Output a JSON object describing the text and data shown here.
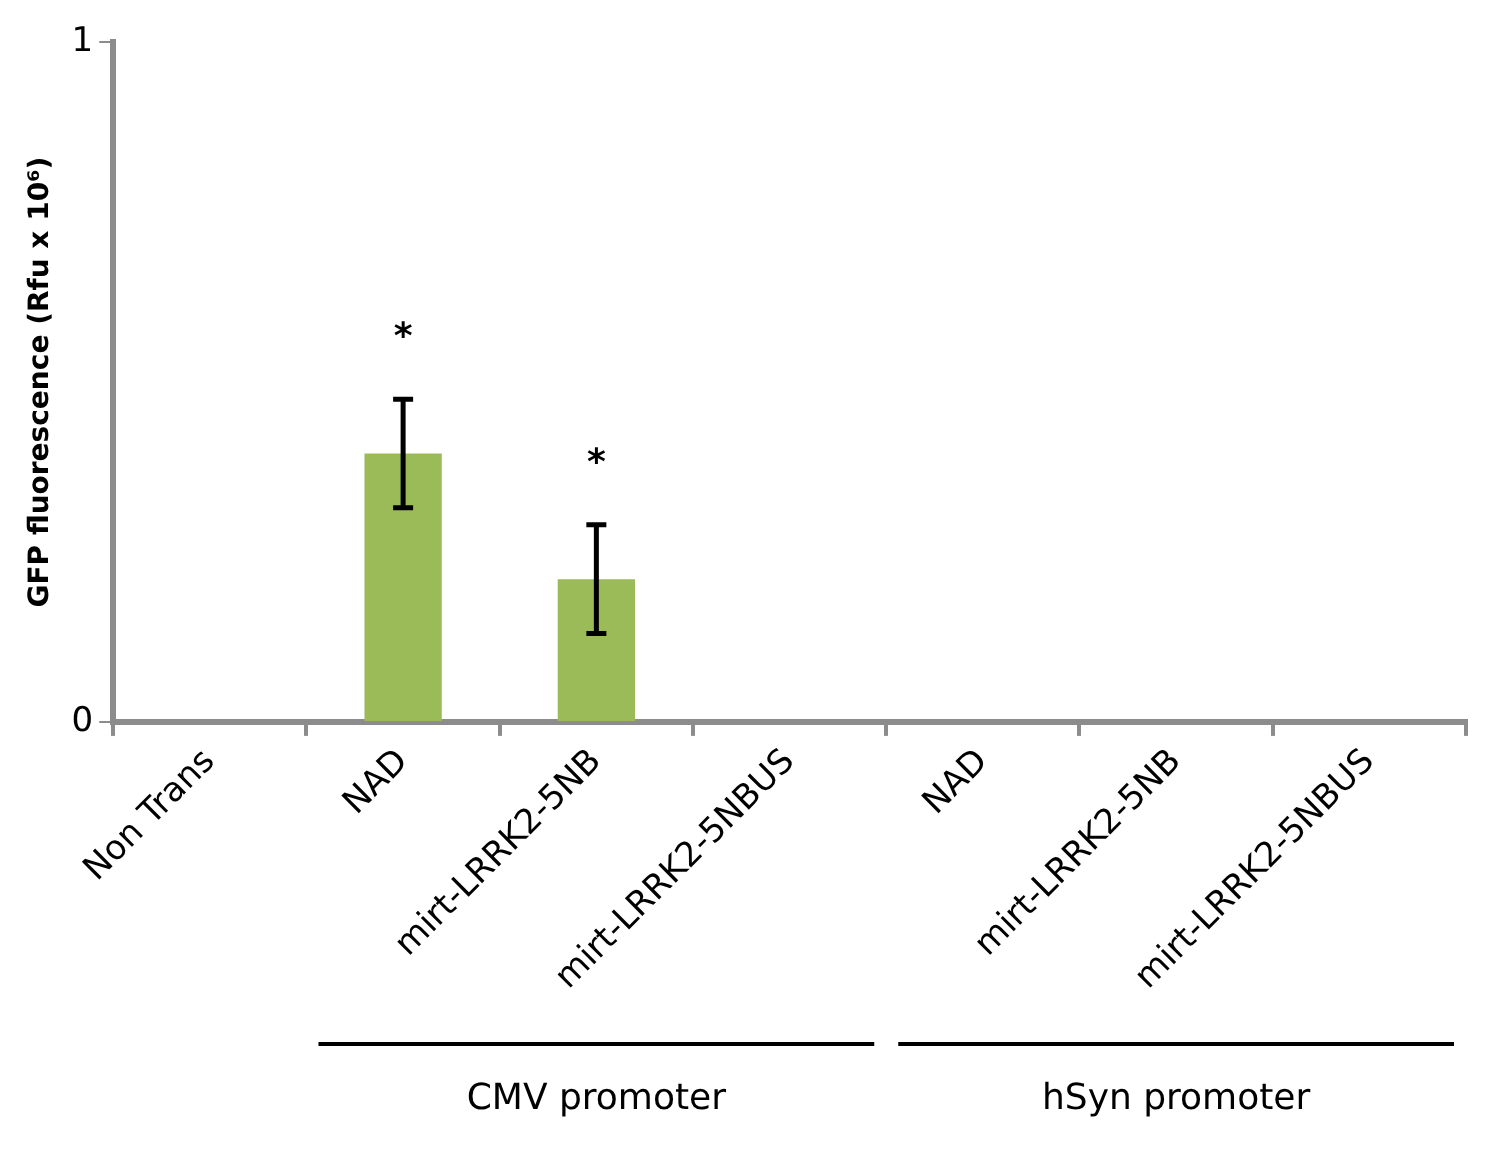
{
  "chart_data": {
    "type": "bar",
    "ylabel": "GFP fluorescence (Rfu x 10⁶)",
    "categories": [
      "Non Trans",
      "NAD",
      "mirt-LRRK2-5NB",
      "mirt-LRRK2-5NBUS",
      "NAD",
      "mirt-LRRK2-5NB",
      "mirt-LRRK2-5NBUS"
    ],
    "values": [
      0,
      0.395,
      0.21,
      0,
      0,
      0,
      0
    ],
    "errors": [
      null,
      0.08,
      0.08,
      null,
      null,
      null,
      null
    ],
    "color": "#9bbb59",
    "ylim": [
      0,
      1
    ],
    "yticks": [
      0,
      1
    ],
    "grid": false,
    "legend": false,
    "annotations": [
      "*",
      "*",
      "CMV promoter",
      "hSyn promoter"
    ]
  }
}
